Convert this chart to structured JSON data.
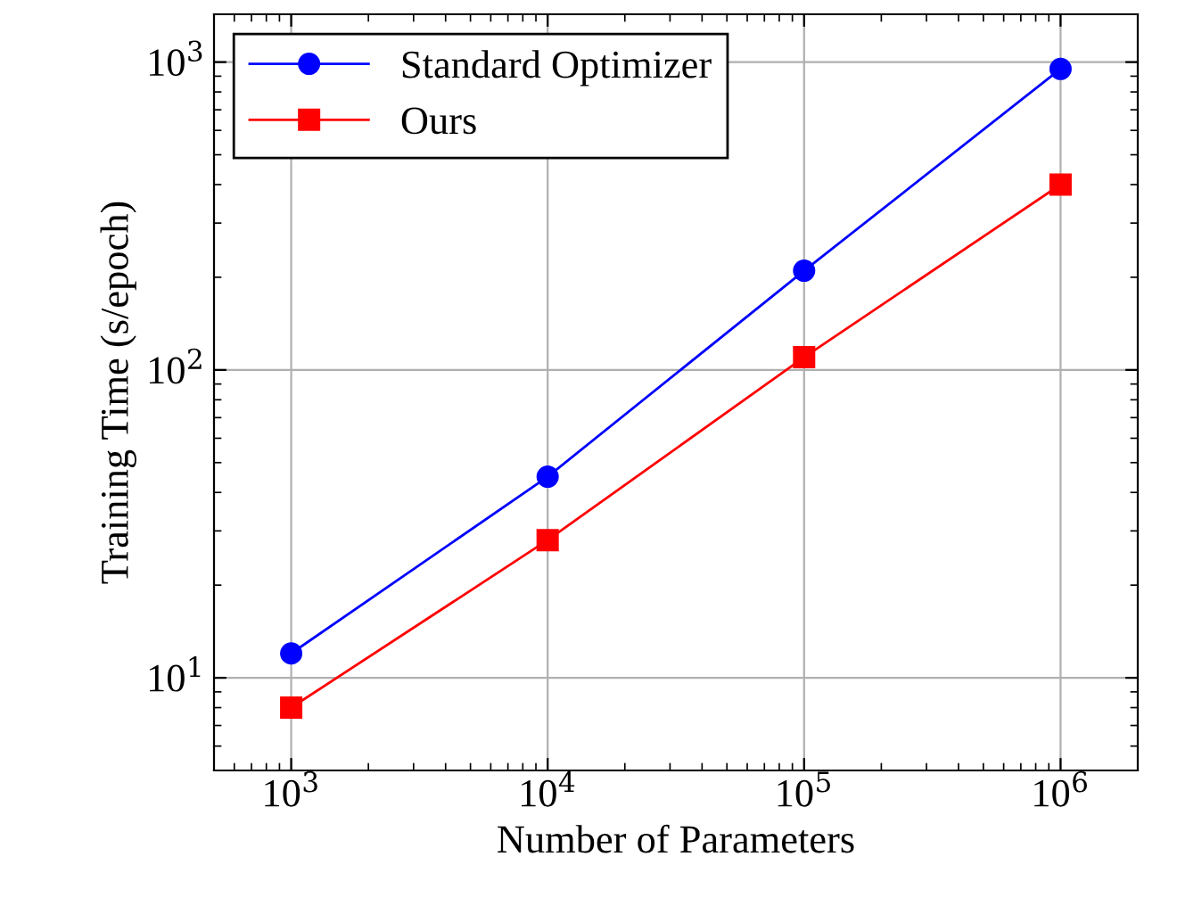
{
  "chart_data": {
    "type": "line",
    "xlabel": "Number of Parameters",
    "ylabel": "Training Time (s/epoch)",
    "x": [
      1000,
      10000,
      100000,
      1000000
    ],
    "series": [
      {
        "name": "Standard Optimizer",
        "color": "#0000ff",
        "values": [
          12,
          45,
          210,
          950
        ],
        "marker": "circle"
      },
      {
        "name": "Ours",
        "color": "#ff0000",
        "values": [
          8,
          28,
          110,
          400
        ],
        "marker": "square"
      }
    ],
    "log": "xy",
    "xlim": [
      500,
      2000000
    ],
    "ylim": [
      5,
      1430
    ],
    "xticks": [
      {
        "value": 1000,
        "label": "10$^{3}$"
      },
      {
        "value": 10000,
        "label": "10$^{4}$"
      },
      {
        "value": 100000,
        "label": "10$^{5}$"
      },
      {
        "value": 1000000,
        "label": "10$^{6}$"
      }
    ],
    "yticks": [
      {
        "value": 10,
        "label": "10$^{1}$"
      },
      {
        "value": 100,
        "label": "10$^{2}$"
      },
      {
        "value": 1000,
        "label": "10$^{3}$"
      }
    ],
    "grid": true,
    "legend": "top left",
    "line_style": "solid"
  }
}
